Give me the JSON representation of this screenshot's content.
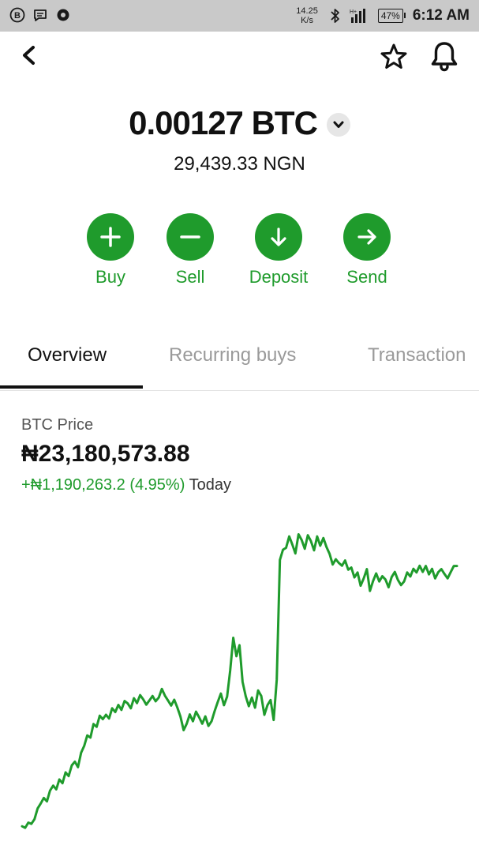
{
  "status_bar": {
    "net_speed_value": "14.25",
    "net_speed_unit": "K/s",
    "battery": "47%",
    "time": "6:12 AM"
  },
  "header": {
    "balance": "0.00127 BTC",
    "fiat_value": "29,439.33 NGN"
  },
  "actions": [
    {
      "label": "Buy",
      "icon": "plus-icon"
    },
    {
      "label": "Sell",
      "icon": "minus-icon"
    },
    {
      "label": "Deposit",
      "icon": "arrow-down-icon"
    },
    {
      "label": "Send",
      "icon": "arrow-right-icon"
    }
  ],
  "tabs": [
    {
      "label": "Overview",
      "active": true
    },
    {
      "label": "Recurring buys",
      "active": false
    },
    {
      "label": "Transaction",
      "active": false
    }
  ],
  "price": {
    "label": "BTC Price",
    "value": "₦23,180,573.88",
    "change": "+₦1,190,263.2 (4.95%)",
    "period": "Today"
  },
  "colors": {
    "accent": "#1f9b2c",
    "status_bar_bg": "#c9c9c9",
    "tab_inactive": "#9a9a9a"
  },
  "chart_data": {
    "type": "line",
    "series_color": "#1f9b2c",
    "points": [
      [
        0,
        2.0
      ],
      [
        1,
        1.5
      ],
      [
        2,
        3.2
      ],
      [
        3,
        2.8
      ],
      [
        4,
        4.3
      ],
      [
        5,
        7.8
      ],
      [
        6,
        9.4
      ],
      [
        7,
        11.2
      ],
      [
        8,
        10.1
      ],
      [
        9,
        13.6
      ],
      [
        10,
        15.2
      ],
      [
        11,
        14.0
      ],
      [
        12,
        17.2
      ],
      [
        13,
        16.0
      ],
      [
        14,
        19.5
      ],
      [
        15,
        18.3
      ],
      [
        16,
        21.8
      ],
      [
        17,
        23.0
      ],
      [
        18,
        21.2
      ],
      [
        19,
        25.9
      ],
      [
        20,
        28.1
      ],
      [
        21,
        31.5
      ],
      [
        22,
        30.8
      ],
      [
        23,
        35.2
      ],
      [
        24,
        34.3
      ],
      [
        25,
        37.9
      ],
      [
        26,
        36.8
      ],
      [
        27,
        38.2
      ],
      [
        28,
        37.0
      ],
      [
        29,
        40.3
      ],
      [
        30,
        39.1
      ],
      [
        31,
        41.4
      ],
      [
        32,
        39.8
      ],
      [
        33,
        42.7
      ],
      [
        34,
        41.9
      ],
      [
        35,
        40.3
      ],
      [
        36,
        43.6
      ],
      [
        37,
        42.0
      ],
      [
        38,
        44.6
      ],
      [
        39,
        43.2
      ],
      [
        40,
        41.5
      ],
      [
        41,
        42.9
      ],
      [
        42,
        44.3
      ],
      [
        43,
        42.6
      ],
      [
        44,
        43.8
      ],
      [
        45,
        46.6
      ],
      [
        46,
        44.4
      ],
      [
        47,
        42.8
      ],
      [
        48,
        41.2
      ],
      [
        49,
        43.1
      ],
      [
        50,
        40.5
      ],
      [
        51,
        37.6
      ],
      [
        52,
        33.2
      ],
      [
        53,
        35.3
      ],
      [
        54,
        38.3
      ],
      [
        55,
        36.1
      ],
      [
        56,
        39.2
      ],
      [
        57,
        37.4
      ],
      [
        58,
        35.3
      ],
      [
        59,
        37.7
      ],
      [
        60,
        34.6
      ],
      [
        61,
        36.1
      ],
      [
        62,
        39.4
      ],
      [
        63,
        42.4
      ],
      [
        64,
        45.1
      ],
      [
        65,
        41.3
      ],
      [
        66,
        44.1
      ],
      [
        67,
        52.6
      ],
      [
        68,
        63.2
      ],
      [
        69,
        57.2
      ],
      [
        70,
        60.8
      ],
      [
        71,
        48.9
      ],
      [
        72,
        44.2
      ],
      [
        73,
        41.0
      ],
      [
        74,
        43.8
      ],
      [
        75,
        40.5
      ],
      [
        76,
        46.1
      ],
      [
        77,
        44.3
      ],
      [
        78,
        38.2
      ],
      [
        79,
        41.3
      ],
      [
        80,
        43.0
      ],
      [
        81,
        36.5
      ],
      [
        82,
        49.6
      ],
      [
        83,
        88.5
      ],
      [
        84,
        91.8
      ],
      [
        85,
        92.4
      ],
      [
        86,
        96.1
      ],
      [
        87,
        93.5
      ],
      [
        88,
        90.6
      ],
      [
        89,
        96.8
      ],
      [
        90,
        95.0
      ],
      [
        91,
        92.1
      ],
      [
        92,
        96.5
      ],
      [
        93,
        94.6
      ],
      [
        94,
        91.6
      ],
      [
        95,
        96.1
      ],
      [
        96,
        93.1
      ],
      [
        97,
        95.6
      ],
      [
        98,
        92.7
      ],
      [
        99,
        90.5
      ],
      [
        100,
        87.0
      ],
      [
        101,
        88.7
      ],
      [
        102,
        87.5
      ],
      [
        103,
        86.6
      ],
      [
        104,
        88.3
      ],
      [
        105,
        85.3
      ],
      [
        106,
        86.0
      ],
      [
        107,
        82.8
      ],
      [
        108,
        84.4
      ],
      [
        109,
        80.1
      ],
      [
        110,
        82.5
      ],
      [
        111,
        85.5
      ],
      [
        112,
        78.4
      ],
      [
        113,
        81.6
      ],
      [
        114,
        84.1
      ],
      [
        115,
        81.5
      ],
      [
        116,
        83.2
      ],
      [
        117,
        82.1
      ],
      [
        118,
        79.6
      ],
      [
        119,
        82.9
      ],
      [
        120,
        84.6
      ],
      [
        121,
        82.0
      ],
      [
        122,
        80.3
      ],
      [
        123,
        81.5
      ],
      [
        124,
        84.4
      ],
      [
        125,
        83.1
      ],
      [
        126,
        85.6
      ],
      [
        127,
        84.4
      ],
      [
        128,
        86.6
      ],
      [
        129,
        84.6
      ],
      [
        130,
        86.5
      ],
      [
        131,
        83.8
      ],
      [
        132,
        85.6
      ],
      [
        133,
        82.5
      ],
      [
        134,
        84.5
      ],
      [
        135,
        85.5
      ],
      [
        136,
        83.9
      ],
      [
        137,
        82.5
      ],
      [
        138,
        84.5
      ],
      [
        139,
        86.5
      ],
      [
        140,
        86.5
      ]
    ]
  }
}
